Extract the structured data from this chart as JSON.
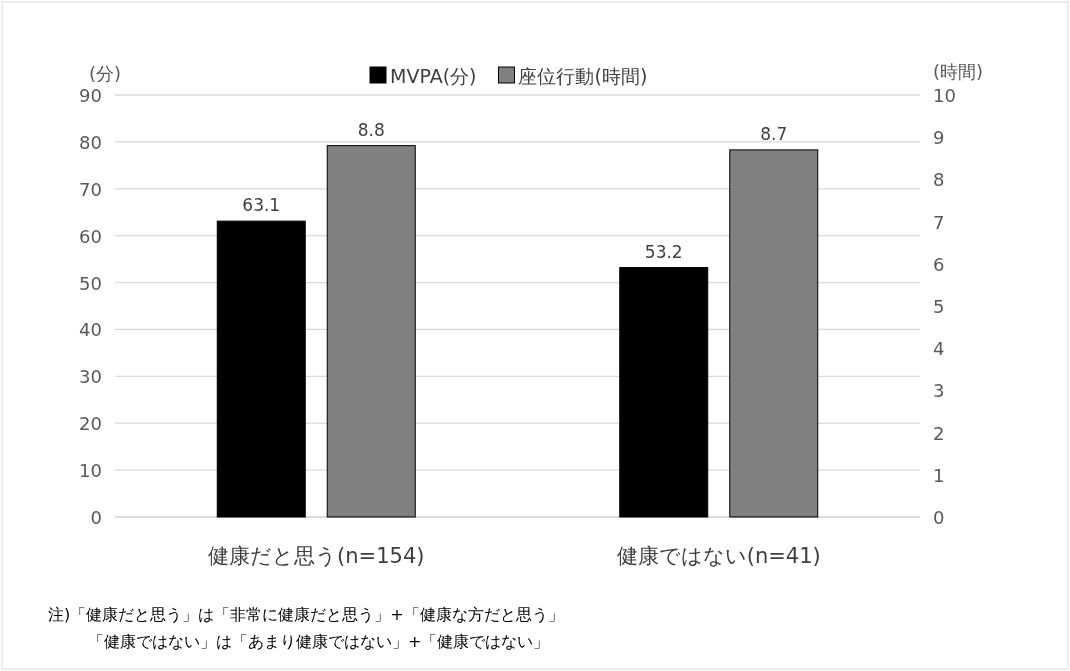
{
  "chart_data": {
    "type": "bar",
    "ylabel": "(分)",
    "y2label": "(時間)",
    "categories": [
      "健康だと思う(n=154)",
      "健康ではない(n=41)"
    ],
    "series": [
      {
        "name": "MVPA(分)",
        "color": "#000000",
        "values": [
          63.1,
          53.2
        ]
      },
      {
        "name": "座位行動(時間)",
        "color": "#808080",
        "values": [
          8.8,
          8.7
        ],
        "axis": "y2"
      }
    ],
    "ylim": [
      0,
      90
    ],
    "yticks": [
      0,
      10,
      20,
      30,
      40,
      50,
      60,
      70,
      80,
      90
    ],
    "y2lim": [
      0,
      10
    ],
    "y2ticks": [
      0,
      1,
      2,
      3,
      4,
      5,
      6,
      7,
      8,
      9,
      10
    ],
    "grid": "y",
    "legend": "top",
    "data_labels": true,
    "annotations": [
      "注)「健康だと思う」は「非常に健康だと思う」+「健康な方だと思う」",
      "「健康ではない」は「あまり健康ではない」+「健康ではない」"
    ]
  }
}
